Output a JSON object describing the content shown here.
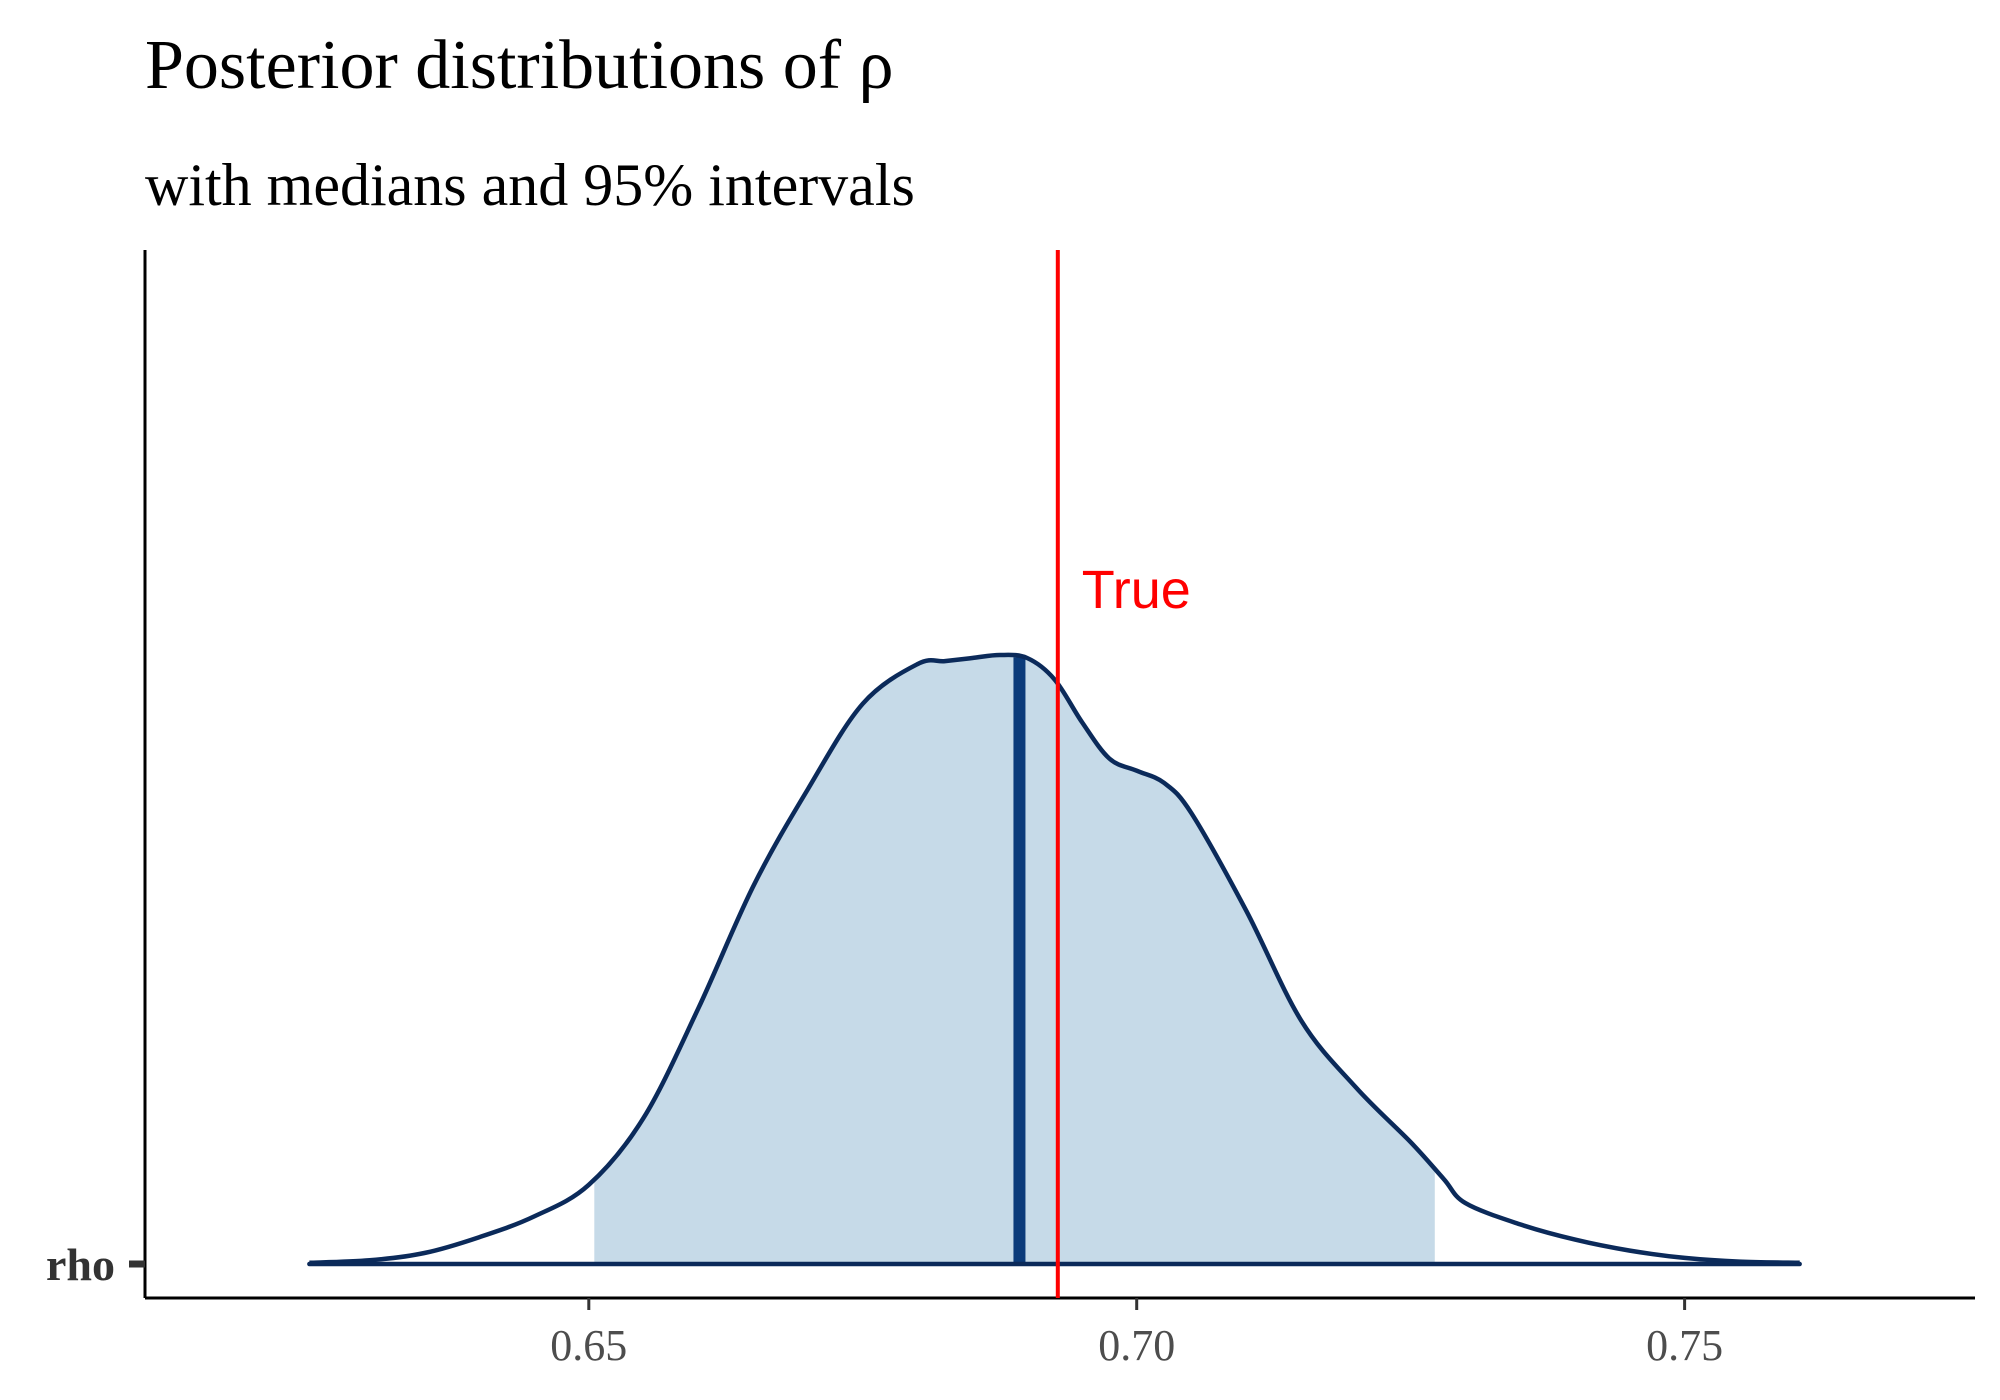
{
  "chart_data": {
    "type": "area",
    "title": "Posterior distributions of ρ",
    "subtitle": "with medians and 95% intervals",
    "xlabel": "",
    "ylabel": "",
    "parameter": "rho",
    "xlim": [
      0.6095,
      0.7765
    ],
    "x_ticks": [
      0.65,
      0.7,
      0.75
    ],
    "x_tick_labels": [
      "0.65",
      "0.70",
      "0.75"
    ],
    "median": 0.6893,
    "interval_95": [
      0.6505,
      0.7272
    ],
    "reference_line": {
      "label": "True",
      "value": 0.6928,
      "color": "#ff0000"
    },
    "density": {
      "x": [
        0.6245,
        0.63,
        0.635,
        0.64,
        0.645,
        0.65,
        0.655,
        0.66,
        0.665,
        0.67,
        0.675,
        0.68,
        0.6825,
        0.685,
        0.6875,
        0.69,
        0.6925,
        0.695,
        0.6975,
        0.7,
        0.7025,
        0.705,
        0.71,
        0.715,
        0.72,
        0.725,
        0.728,
        0.73,
        0.735,
        0.74,
        0.745,
        0.75,
        0.755,
        0.7605
      ],
      "y": [
        0.002,
        0.006,
        0.018,
        0.044,
        0.078,
        0.13,
        0.24,
        0.42,
        0.62,
        0.78,
        0.92,
        0.985,
        0.99,
        0.995,
        1.0,
        0.995,
        0.96,
        0.89,
        0.83,
        0.81,
        0.79,
        0.74,
        0.58,
        0.4,
        0.29,
        0.2,
        0.14,
        0.1,
        0.065,
        0.04,
        0.022,
        0.01,
        0.004,
        0.002
      ]
    },
    "colors": {
      "fill": "#c6dae8",
      "outline": "#0b2a5a",
      "median_line": "#0b3b7a",
      "axis": "#000000"
    }
  }
}
